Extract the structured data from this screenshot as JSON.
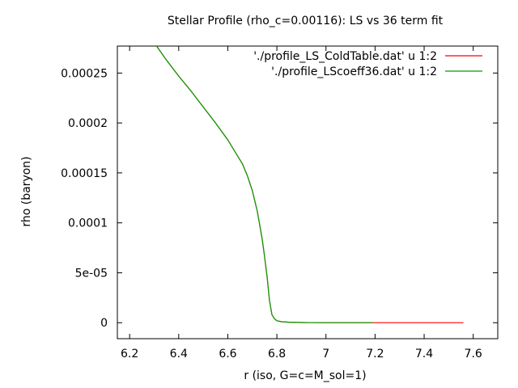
{
  "chart_data": {
    "type": "line",
    "title": "Stellar Profile (rho_c=0.00116): LS vs 36 term fit",
    "xlabel": "r (iso, G=c=M_sol=1)",
    "ylabel": "rho (baryon)",
    "xlim": [
      6.15,
      7.7
    ],
    "ylim": [
      -1.6e-05,
      0.000277
    ],
    "xticks": [
      6.2,
      6.4,
      6.6,
      6.8,
      7,
      7.2,
      7.4,
      7.6
    ],
    "xtick_labels": [
      "6.2",
      "6.4",
      "6.6",
      "6.8",
      "7",
      "7.2",
      "7.4",
      "7.6"
    ],
    "yticks": [
      0,
      5e-05,
      0.0001,
      0.00015,
      0.0002,
      0.00025
    ],
    "ytick_labels": [
      "0",
      "5e-05",
      "0.0001",
      "0.00015",
      "0.0002",
      "0.00025"
    ],
    "grid": false,
    "legend_position": "top-right",
    "series": [
      {
        "name": "'./profile_LS_ColdTable.dat' u 1:2",
        "color": "#ff0000",
        "x": [
          6.31,
          6.35,
          6.4,
          6.45,
          6.5,
          6.55,
          6.6,
          6.63,
          6.66,
          6.68,
          6.7,
          6.72,
          6.74,
          6.75,
          6.76,
          6.77,
          6.78,
          6.79,
          6.8,
          6.82,
          6.85,
          6.9,
          7.0,
          7.2,
          7.4,
          7.56
        ],
        "y": [
          0.000277,
          0.000263,
          0.000247,
          0.000232,
          0.000216,
          0.0002,
          0.000183,
          0.000171,
          0.000159,
          0.000147,
          0.000132,
          0.000112,
          8.4e-05,
          6.6e-05,
          4.6e-05,
          2.2e-05,
          8e-06,
          4e-06,
          2e-06,
          1e-06,
          5e-07,
          2e-07,
          0,
          0,
          0,
          0
        ]
      },
      {
        "name": "'./profile_LScoeff36.dat' u 1:2",
        "color": "#00a000",
        "x": [
          6.31,
          6.35,
          6.4,
          6.45,
          6.5,
          6.55,
          6.6,
          6.63,
          6.66,
          6.68,
          6.7,
          6.72,
          6.74,
          6.75,
          6.76,
          6.77,
          6.78,
          6.79,
          6.8,
          6.82,
          6.85,
          6.9,
          7.0,
          7.1,
          7.19
        ],
        "y": [
          0.000277,
          0.000263,
          0.000247,
          0.000232,
          0.000216,
          0.0002,
          0.000183,
          0.000171,
          0.000159,
          0.000147,
          0.000132,
          0.000112,
          8.4e-05,
          6.6e-05,
          4.6e-05,
          2.2e-05,
          8e-06,
          4e-06,
          2e-06,
          1e-06,
          5e-07,
          2e-07,
          0,
          0,
          0
        ]
      }
    ]
  }
}
